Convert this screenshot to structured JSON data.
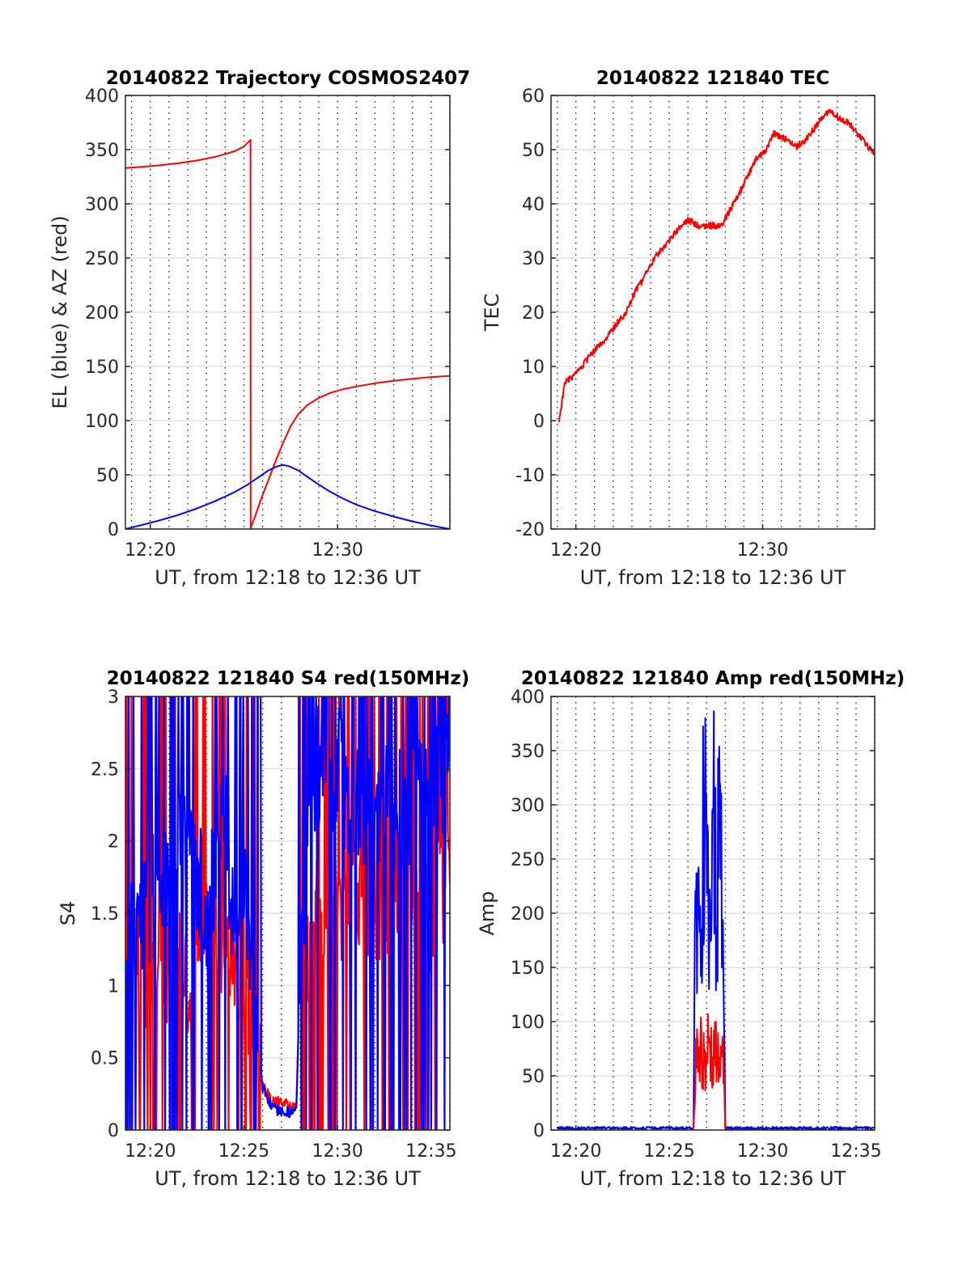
{
  "chart_data": [
    {
      "id": "trajectory",
      "type": "line",
      "title": "20140822 Trajectory COSMOS2407",
      "xlabel": "UT, from 12:18 to 12:36 UT",
      "ylabel": "EL (blue) & AZ (red)",
      "xlim": [
        1098.67,
        1116
      ],
      "ylim": [
        0,
        400
      ],
      "yticks": [
        0,
        50,
        100,
        150,
        200,
        250,
        300,
        350,
        400
      ],
      "xticks": [
        1100,
        1110
      ],
      "xticklabels": [
        "12:20",
        "12:30"
      ],
      "grid": "horizontal solid, vertical dotted every minute",
      "series": [
        {
          "color": "#ff0000",
          "x": [
            1098.67,
            1099.5,
            1100.5,
            1101.5,
            1102.5,
            1103.5,
            1104.5,
            1105.0,
            1105.35,
            1105.36,
            1105.4,
            1105.6,
            1105.9,
            1106.3,
            1106.7,
            1107.1,
            1107.5,
            1107.9,
            1108.4,
            1109.0,
            1109.6,
            1110.3,
            1111.0,
            1112.0,
            1113.0,
            1114.0,
            1115.0,
            1116.0
          ],
          "y": [
            333,
            334,
            335.5,
            337.5,
            340,
            343.5,
            348.5,
            353,
            359,
            0,
            3,
            12,
            27,
            45,
            63,
            80,
            95,
            106,
            114.5,
            121,
            125.5,
            129,
            131.5,
            134.5,
            136.8,
            138.6,
            140.2,
            141.3
          ]
        },
        {
          "color": "#0000ff",
          "x": [
            1098.67,
            1099.5,
            1100.5,
            1101.5,
            1102.5,
            1103.5,
            1104.5,
            1105.2,
            1105.8,
            1106.3,
            1106.8,
            1107.1,
            1107.4,
            1107.9,
            1108.4,
            1109.0,
            1109.6,
            1110.3,
            1111.0,
            1112.0,
            1113.0,
            1114.0,
            1115.0,
            1116.0
          ],
          "y": [
            0,
            3.5,
            8,
            13,
            19,
            26,
            34,
            41,
            48,
            54,
            58,
            59,
            58,
            54,
            48,
            41,
            34.5,
            28,
            22.5,
            16.5,
            11.5,
            7,
            3.2,
            0
          ]
        }
      ]
    },
    {
      "id": "tec",
      "type": "line",
      "title": "20140822 121840 TEC",
      "xlabel": "UT, from 12:18 to 12:36 UT",
      "ylabel": "TEC",
      "xlim": [
        1098.67,
        1116
      ],
      "ylim": [
        -20,
        60
      ],
      "yticks": [
        -20,
        -10,
        0,
        10,
        20,
        30,
        40,
        50,
        60
      ],
      "xticks": [
        1100,
        1110
      ],
      "xticklabels": [
        "12:20",
        "12:30"
      ],
      "grid": "horizontal solid, vertical dotted every minute",
      "series": [
        {
          "color": "#ff0000",
          "x": [
            1099.1,
            1099.4,
            1100.0,
            1101.0,
            1101.6,
            1102.2,
            1102.6,
            1103.2,
            1103.6,
            1104.2,
            1104.8,
            1105.4,
            1106.0,
            1106.6,
            1107.1,
            1107.8,
            1108.6,
            1109.2,
            1109.6,
            1110.2,
            1110.6,
            1111.2,
            1111.8,
            1112.2,
            1112.8,
            1113.2,
            1113.6,
            1114.0,
            1114.6,
            1115.3,
            1116.0
          ],
          "y": [
            0,
            7,
            8.5,
            13,
            15,
            18,
            19.5,
            24,
            26,
            30,
            32.5,
            35,
            37,
            36,
            36,
            36,
            41,
            45,
            48,
            50,
            53,
            52,
            50.5,
            51.5,
            54,
            56,
            57,
            56,
            55,
            52,
            49
          ]
        }
      ]
    },
    {
      "id": "s4",
      "type": "line",
      "title": "20140822 121840 S4 red(150MHz)",
      "xlabel": "UT, from 12:18 to 12:36 UT",
      "ylabel": "S4",
      "xlim": [
        1098.67,
        1116
      ],
      "ylim": [
        0,
        3
      ],
      "yticks": [
        0,
        0.5,
        1,
        1.5,
        2,
        2.5,
        3
      ],
      "xticks": [
        1100,
        1105,
        1110,
        1115
      ],
      "xticklabels": [
        "12:20",
        "12:25",
        "12:30",
        "12:35"
      ],
      "grid": "horizontal solid, vertical dotted every minute",
      "series": [
        {
          "color": "#ff0000",
          "x": [
            1098.67,
            1100.0,
            1101.0,
            1102.0,
            1103.0,
            1104.0,
            1104.5,
            1105.0,
            1105.6,
            1106.0,
            1106.5,
            1107.0,
            1107.5,
            1107.8,
            1108.0,
            1108.5,
            1109.0,
            1110.0,
            1111.0,
            1112.0,
            1113.0,
            1114.0,
            1115.0,
            1116.0
          ],
          "y": [
            1.2,
            1.0,
            1.2,
            1.0,
            1.4,
            1.2,
            1.1,
            1.0,
            0.5,
            0.3,
            0.2,
            0.2,
            0.15,
            0.15,
            1.1,
            1.3,
            1.5,
            1.6,
            1.7,
            1.6,
            1.6,
            1.7,
            1.5,
            1.7
          ],
          "note": "scintillating; high-variance fluctuations filling 0 to 3 where noisy"
        },
        {
          "color": "#0000ff",
          "x": [
            1098.67,
            1100.0,
            1101.0,
            1102.0,
            1103.0,
            1104.0,
            1104.5,
            1105.0,
            1105.6,
            1106.0,
            1106.5,
            1107.0,
            1107.5,
            1107.8,
            1108.0,
            1108.5,
            1109.0,
            1110.0,
            1111.0,
            1112.0,
            1113.0,
            1114.0,
            1115.0,
            1116.0
          ],
          "y": [
            1.2,
            1.6,
            1.8,
            2.0,
            1.5,
            2.2,
            1.3,
            1.8,
            0.9,
            0.3,
            0.15,
            0.13,
            0.12,
            0.12,
            1.2,
            2.3,
            2.5,
            2.5,
            2.2,
            2.3,
            2.2,
            2.3,
            2.3,
            2.6
          ],
          "note": "scintillating; high-variance fluctuations filling 0 to 3 where noisy"
        }
      ]
    },
    {
      "id": "amp",
      "type": "line",
      "title": "20140822 121840 Amp red(150MHz)",
      "xlabel": "UT, from 12:18 to 12:36 UT",
      "ylabel": "Amp",
      "xlim": [
        1098.67,
        1116
      ],
      "ylim": [
        0,
        400
      ],
      "yticks": [
        0,
        50,
        100,
        150,
        200,
        250,
        300,
        350,
        400
      ],
      "xticks": [
        1100,
        1105,
        1110,
        1115
      ],
      "xticklabels": [
        "12:20",
        "12:25",
        "12:30",
        "12:35"
      ],
      "grid": "horizontal solid, vertical dotted every minute",
      "series": [
        {
          "color": "#0000ff",
          "x": [
            1099.0,
            1106.3,
            1106.4,
            1106.6,
            1106.9,
            1107.1,
            1107.3,
            1107.5,
            1107.7,
            1107.9,
            1108.0,
            1116.0
          ],
          "y": [
            1,
            1,
            215,
            160,
            330,
            180,
            340,
            200,
            290,
            150,
            1,
            1
          ]
        },
        {
          "color": "#ff0000",
          "x": [
            1106.3,
            1106.4,
            1106.6,
            1106.9,
            1107.1,
            1107.3,
            1107.5,
            1107.7,
            1107.9,
            1108.0
          ],
          "y": [
            0,
            55,
            80,
            60,
            90,
            55,
            75,
            60,
            70,
            0
          ]
        }
      ]
    }
  ]
}
